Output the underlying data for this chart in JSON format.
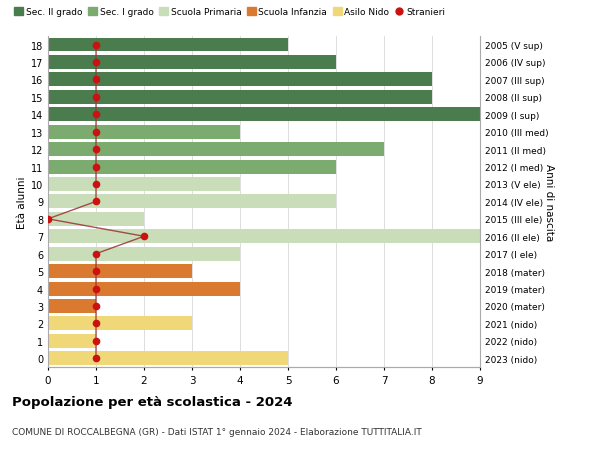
{
  "ages": [
    18,
    17,
    16,
    15,
    14,
    13,
    12,
    11,
    10,
    9,
    8,
    7,
    6,
    5,
    4,
    3,
    2,
    1,
    0
  ],
  "anni": [
    "2005 (V sup)",
    "2006 (IV sup)",
    "2007 (III sup)",
    "2008 (II sup)",
    "2009 (I sup)",
    "2010 (III med)",
    "2011 (II med)",
    "2012 (I med)",
    "2013 (V ele)",
    "2014 (IV ele)",
    "2015 (III ele)",
    "2016 (II ele)",
    "2017 (I ele)",
    "2018 (mater)",
    "2019 (mater)",
    "2020 (mater)",
    "2021 (nido)",
    "2022 (nido)",
    "2023 (nido)"
  ],
  "bar_values": [
    5,
    6,
    8,
    8,
    9,
    4,
    7,
    6,
    4,
    6,
    2,
    9,
    4,
    3,
    4,
    1,
    3,
    1,
    5
  ],
  "bar_colors": [
    "#4a7c4e",
    "#4a7c4e",
    "#4a7c4e",
    "#4a7c4e",
    "#4a7c4e",
    "#7bab6e",
    "#7bab6e",
    "#7bab6e",
    "#c8ddb8",
    "#c8ddb8",
    "#c8ddb8",
    "#c8ddb8",
    "#c8ddb8",
    "#d97a30",
    "#d97a30",
    "#d97a30",
    "#f0d878",
    "#f0d878",
    "#f0d878"
  ],
  "stranieri": [
    1,
    1,
    1,
    1,
    1,
    1,
    1,
    1,
    1,
    1,
    0,
    2,
    1,
    1,
    1,
    1,
    1,
    1,
    1
  ],
  "legend_labels": [
    "Sec. II grado",
    "Sec. I grado",
    "Scuola Primaria",
    "Scuola Infanzia",
    "Asilo Nido",
    "Stranieri"
  ],
  "legend_colors": [
    "#4a7c4e",
    "#7bab6e",
    "#c8ddb8",
    "#d97a30",
    "#f0d878",
    "#cc1111"
  ],
  "title": "Popolazione per età scolastica - 2024",
  "subtitle": "COMUNE DI ROCCALBEGNA (GR) - Dati ISTAT 1° gennaio 2024 - Elaborazione TUTTITALIA.IT",
  "ylabel_left": "Età alunni",
  "ylabel_right": "Anni di nascita",
  "xlim": [
    0,
    9
  ],
  "background_color": "#ffffff",
  "plot_bg_color": "#ffffff",
  "grid_color": "#dddddd",
  "stranieri_color": "#cc1111",
  "stranieri_line_color": "#993333"
}
